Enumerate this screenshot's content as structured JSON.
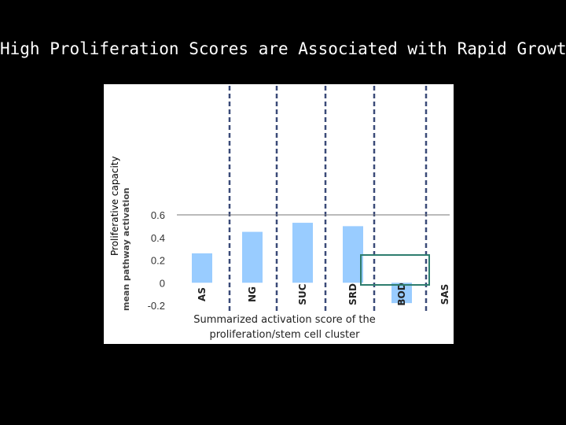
{
  "slide": {
    "title": "High Proliferation Scores are Associated with Rapid Growth"
  },
  "chart_data": {
    "type": "bar",
    "title": "",
    "ylabel": "Proliferative capacity",
    "ylabel_faint": "mean pathway activation",
    "xlabel": "Summarized activation score of the proliferation/stem cell cluster",
    "ylim": [
      -0.2,
      0.6
    ],
    "yticks": [
      "0.6",
      "0.4",
      "0.2",
      "0",
      "-0.2"
    ],
    "categories": [
      "AS",
      "NG",
      "SUC",
      "SRD",
      "BOD",
      "SAS"
    ],
    "values": [
      0.26,
      0.45,
      0.53,
      0.5,
      -0.18,
      null
    ],
    "bar_color": "#99ccff",
    "grid": false,
    "legend": "none",
    "highlight": {
      "category": "BOD",
      "color": "#2e7d6e"
    }
  }
}
